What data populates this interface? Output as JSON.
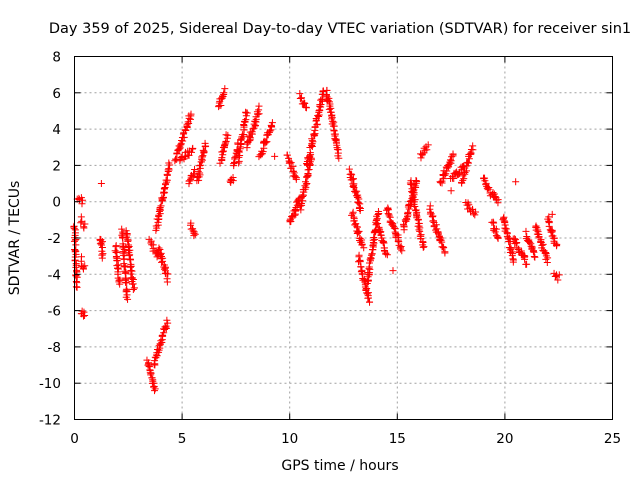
{
  "chart_data": {
    "type": "scatter",
    "title": "Day 359 of 2025, Sidereal Day-to-day VTEC variation (SDTVAR) for receiver sin1",
    "xlabel": "GPS time / hours",
    "ylabel": "SDTVAR / TECUs",
    "xlim": [
      0,
      25
    ],
    "ylim": [
      -12,
      8
    ],
    "xticks": [
      0,
      5,
      10,
      15,
      20,
      25
    ],
    "yticks": [
      -12,
      -10,
      -8,
      -6,
      -4,
      -2,
      0,
      2,
      4,
      6,
      8
    ],
    "xtick_labels": [
      "0",
      "5",
      "10",
      "15",
      "20",
      "25"
    ],
    "ytick_labels": [
      "-12",
      "-10",
      "-8",
      "-6",
      "-4",
      "-2",
      "0",
      "2",
      "4",
      "6",
      "8"
    ],
    "grid": true,
    "marker": "+",
    "color": "#ff0000",
    "series": [
      {
        "name": "sin1",
        "segments": [
          {
            "x0": 0.0,
            "x1": 0.1,
            "y0": -1.3,
            "y1": -4.7
          },
          {
            "x0": 0.15,
            "x1": 0.4,
            "y0": 0.2,
            "y1": 0.0
          },
          {
            "x0": 0.3,
            "x1": 0.45,
            "y0": -3.2,
            "y1": -3.7
          },
          {
            "x0": 0.3,
            "x1": 0.45,
            "y0": -1.0,
            "y1": -1.4
          },
          {
            "x0": 0.35,
            "x1": 0.45,
            "y0": -6.0,
            "y1": -6.4
          },
          {
            "x0": 1.2,
            "x1": 1.3,
            "y0": -2.0,
            "y1": -3.1
          },
          {
            "x0": 1.9,
            "x1": 2.1,
            "y0": -2.5,
            "y1": -4.5
          },
          {
            "x0": 2.2,
            "x1": 2.45,
            "y0": -1.5,
            "y1": -5.3
          },
          {
            "x0": 2.4,
            "x1": 2.75,
            "y0": -1.6,
            "y1": -4.9
          },
          {
            "x0": 3.4,
            "x1": 3.75,
            "y0": -8.7,
            "y1": -10.5
          },
          {
            "x0": 3.5,
            "x1": 3.9,
            "y0": -2.2,
            "y1": -3.0
          },
          {
            "x0": 3.7,
            "x1": 4.3,
            "y0": -9.0,
            "y1": -6.6
          },
          {
            "x0": 3.9,
            "x1": 4.35,
            "y0": -2.5,
            "y1": -4.3
          },
          {
            "x0": 3.8,
            "x1": 4.4,
            "y0": -1.5,
            "y1": 2.0
          },
          {
            "x0": 4.7,
            "x1": 5.4,
            "y0": 2.3,
            "y1": 4.8
          },
          {
            "x0": 4.9,
            "x1": 5.5,
            "y0": 2.3,
            "y1": 2.8
          },
          {
            "x0": 5.3,
            "x1": 5.6,
            "y0": 1.1,
            "y1": 1.7
          },
          {
            "x0": 5.4,
            "x1": 5.6,
            "y0": -1.2,
            "y1": -1.9
          },
          {
            "x0": 5.7,
            "x1": 6.1,
            "y0": 1.1,
            "y1": 3.2
          },
          {
            "x0": 6.7,
            "x1": 6.95,
            "y0": 5.3,
            "y1": 6.2
          },
          {
            "x0": 6.8,
            "x1": 7.1,
            "y0": 2.2,
            "y1": 3.7
          },
          {
            "x0": 7.2,
            "x1": 7.4,
            "y0": 1.0,
            "y1": 1.3
          },
          {
            "x0": 7.4,
            "x1": 7.6,
            "y0": 2.0,
            "y1": 3.2
          },
          {
            "x0": 7.6,
            "x1": 8.0,
            "y0": 2.3,
            "y1": 5.0
          },
          {
            "x0": 8.0,
            "x1": 8.6,
            "y0": 3.0,
            "y1": 5.1
          },
          {
            "x0": 8.6,
            "x1": 9.2,
            "y0": 2.5,
            "y1": 4.3
          },
          {
            "x0": 9.9,
            "x1": 10.3,
            "y0": 2.5,
            "y1": 1.3
          },
          {
            "x0": 10.0,
            "x1": 10.5,
            "y0": -1.2,
            "y1": 0.3
          },
          {
            "x0": 10.5,
            "x1": 11.0,
            "y0": -0.3,
            "y1": 2.3
          },
          {
            "x0": 10.5,
            "x1": 10.8,
            "y0": 5.8,
            "y1": 5.2
          },
          {
            "x0": 10.8,
            "x1": 11.6,
            "y0": 2.0,
            "y1": 6.2
          },
          {
            "x0": 11.7,
            "x1": 12.3,
            "y0": 6.2,
            "y1": 2.5
          },
          {
            "x0": 12.8,
            "x1": 13.3,
            "y0": 1.7,
            "y1": -0.5
          },
          {
            "x0": 12.9,
            "x1": 13.4,
            "y0": -0.6,
            "y1": -2.5
          },
          {
            "x0": 13.2,
            "x1": 13.7,
            "y0": -3.0,
            "y1": -5.6
          },
          {
            "x0": 13.6,
            "x1": 14.1,
            "y0": -4.5,
            "y1": -0.5
          },
          {
            "x0": 14.1,
            "x1": 14.5,
            "y0": -1.2,
            "y1": -3.0
          },
          {
            "x0": 14.5,
            "x1": 15.2,
            "y0": -0.4,
            "y1": -2.6
          },
          {
            "x0": 15.3,
            "x1": 15.9,
            "y0": -1.5,
            "y1": 1.2
          },
          {
            "x0": 15.6,
            "x1": 16.2,
            "y0": 1.2,
            "y1": -2.5
          },
          {
            "x0": 16.1,
            "x1": 16.4,
            "y0": 2.5,
            "y1": 3.0
          },
          {
            "x0": 16.5,
            "x1": 17.2,
            "y0": -0.4,
            "y1": -2.8
          },
          {
            "x0": 17.0,
            "x1": 17.6,
            "y0": 1.0,
            "y1": 2.7
          },
          {
            "x0": 17.5,
            "x1": 18.1,
            "y0": 1.2,
            "y1": 2.0
          },
          {
            "x0": 18.0,
            "x1": 18.5,
            "y0": 1.1,
            "y1": 3.0
          },
          {
            "x0": 18.2,
            "x1": 18.6,
            "y0": -0.1,
            "y1": -0.7
          },
          {
            "x0": 19.0,
            "x1": 19.3,
            "y0": 1.3,
            "y1": 0.5
          },
          {
            "x0": 19.4,
            "x1": 19.7,
            "y0": 0.5,
            "y1": 0.0
          },
          {
            "x0": 19.4,
            "x1": 19.7,
            "y0": -1.2,
            "y1": -2.0
          },
          {
            "x0": 19.9,
            "x1": 20.4,
            "y0": -0.8,
            "y1": -3.2
          },
          {
            "x0": 20.4,
            "x1": 21.0,
            "y0": -2.0,
            "y1": -3.4
          },
          {
            "x0": 21.0,
            "x1": 21.4,
            "y0": -1.8,
            "y1": -3.0
          },
          {
            "x0": 21.4,
            "x1": 22.0,
            "y0": -1.3,
            "y1": -3.3
          },
          {
            "x0": 22.0,
            "x1": 22.4,
            "y0": -0.9,
            "y1": -2.6
          },
          {
            "x0": 22.3,
            "x1": 22.5,
            "y0": -3.9,
            "y1": -4.2
          }
        ],
        "points": [
          {
            "x": 1.25,
            "y": 1.0
          },
          {
            "x": 1.3,
            "y": -2.2
          },
          {
            "x": 6.8,
            "y": 5.3
          },
          {
            "x": 9.3,
            "y": 2.5
          },
          {
            "x": 14.8,
            "y": -3.8
          },
          {
            "x": 17.5,
            "y": 0.6
          },
          {
            "x": 20.5,
            "y": 1.1
          },
          {
            "x": 22.2,
            "y": -0.7
          }
        ]
      }
    ]
  }
}
